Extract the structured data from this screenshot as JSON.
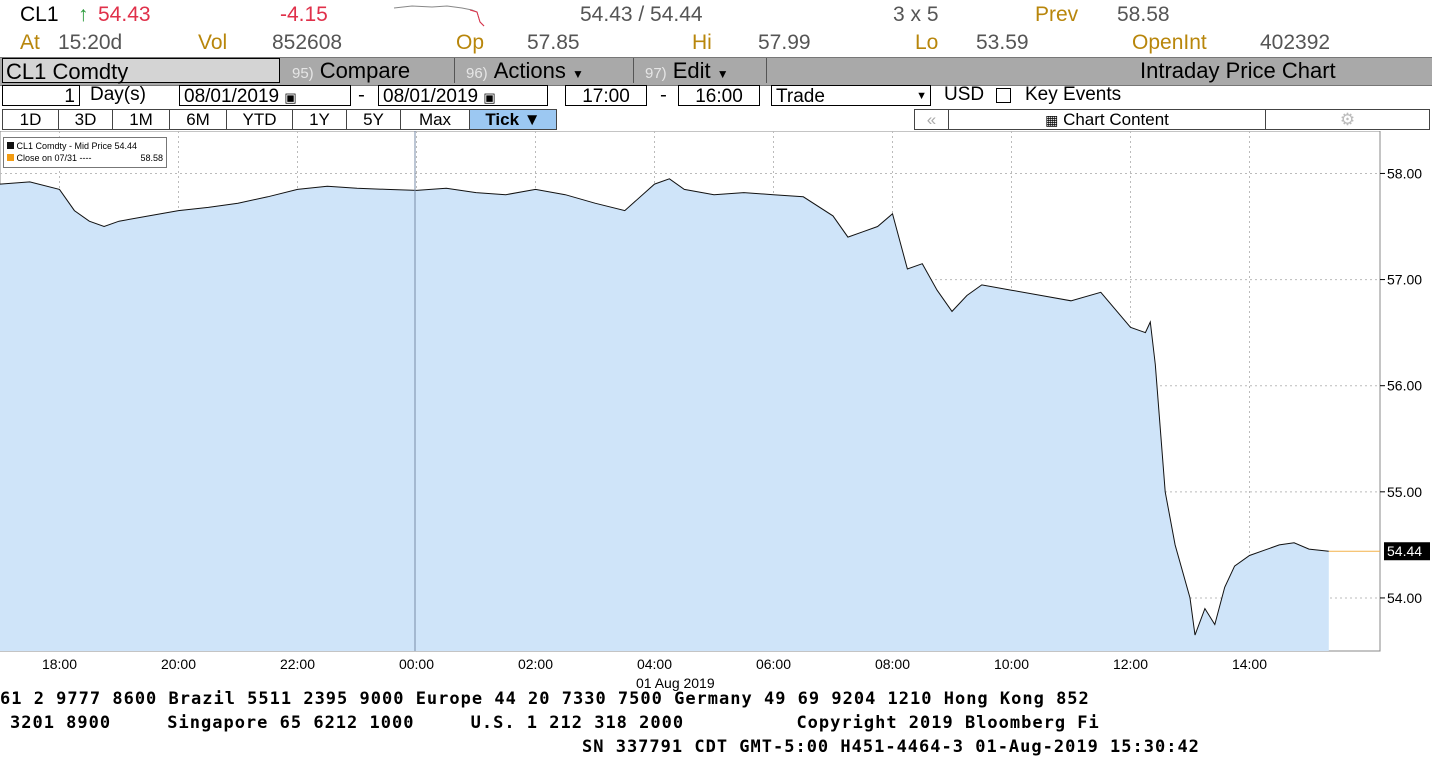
{
  "quote": {
    "ticker": "CL1",
    "arrow": "↑",
    "last": "54.43",
    "change": "-4.15",
    "bid_ask": "54.43 / 54.44",
    "size": "3 x 5",
    "prev_label": "Prev",
    "prev": "58.58",
    "at_label": "At",
    "time": "15:20d",
    "vol_label": "Vol",
    "vol": "852608",
    "op_label": "Op",
    "op": "57.85",
    "hi_label": "Hi",
    "hi": "57.99",
    "lo_label": "Lo",
    "lo": "53.59",
    "oi_label": "OpenInt",
    "oi": "402392"
  },
  "header": {
    "security": "CL1 Comdty",
    "compare_num": "95)",
    "compare": "Compare",
    "actions_num": "96)",
    "actions": "Actions",
    "edit_num": "97)",
    "edit": "Edit",
    "title": "Intraday Price Chart"
  },
  "controls": {
    "days_value": "1",
    "days_unit": "Day(s)",
    "start_date": "08/01/2019",
    "dash": "-",
    "end_date": "08/01/2019",
    "start_time": "17:00",
    "end_time": "16:00",
    "type": "Trade",
    "currency": "USD",
    "key_events": "Key Events"
  },
  "ranges": [
    "1D",
    "3D",
    "1M",
    "6M",
    "YTD",
    "1Y",
    "5Y",
    "Max"
  ],
  "tick_label": "Tick ▼",
  "chart_content": "Chart Content",
  "legend": {
    "series1": "CL1 Comdty - Mid Price 54.44",
    "series2_label": "Close on 07/31 ----",
    "series2_value": "58.58"
  },
  "chart_data": {
    "type": "area",
    "x_tick_labels": [
      "18:00",
      "20:00",
      "22:00",
      "00:00",
      "02:00",
      "04:00",
      "06:00",
      "08:00",
      "10:00",
      "12:00",
      "14:00"
    ],
    "x_date_label": "01 Aug 2019",
    "y_tick_labels": [
      "58.00",
      "57.00",
      "56.00",
      "55.00",
      "54.00"
    ],
    "ylim": [
      53.5,
      58.4
    ],
    "last_price_label": "54.44",
    "x": [
      "17:00",
      "17:30",
      "18:00",
      "18:15",
      "18:30",
      "18:45",
      "19:00",
      "19:30",
      "20:00",
      "20:30",
      "21:00",
      "21:30",
      "22:00",
      "22:30",
      "23:00",
      "23:30",
      "00:00",
      "00:30",
      "01:00",
      "01:30",
      "02:00",
      "02:30",
      "03:00",
      "03:30",
      "04:00",
      "04:15",
      "04:30",
      "05:00",
      "05:30",
      "06:00",
      "06:30",
      "07:00",
      "07:15",
      "07:30",
      "07:45",
      "08:00",
      "08:15",
      "08:30",
      "08:45",
      "09:00",
      "09:15",
      "09:30",
      "10:00",
      "10:30",
      "11:00",
      "11:30",
      "12:00",
      "12:15",
      "12:20",
      "12:25",
      "12:35",
      "12:45",
      "13:00",
      "13:05",
      "13:15",
      "13:25",
      "13:35",
      "13:45",
      "14:00",
      "14:15",
      "14:30",
      "14:45",
      "15:00",
      "15:20"
    ],
    "values": [
      57.9,
      57.92,
      57.85,
      57.65,
      57.55,
      57.5,
      57.55,
      57.6,
      57.65,
      57.68,
      57.72,
      57.78,
      57.85,
      57.88,
      57.86,
      57.85,
      57.84,
      57.86,
      57.82,
      57.8,
      57.85,
      57.8,
      57.72,
      57.65,
      57.9,
      57.95,
      57.85,
      57.8,
      57.82,
      57.8,
      57.78,
      57.6,
      57.4,
      57.45,
      57.5,
      57.62,
      57.1,
      57.15,
      56.9,
      56.7,
      56.85,
      56.95,
      56.9,
      56.85,
      56.8,
      56.88,
      56.55,
      56.5,
      56.6,
      56.2,
      55.0,
      54.5,
      54.0,
      53.65,
      53.9,
      53.75,
      54.1,
      54.3,
      54.4,
      54.45,
      54.5,
      54.52,
      54.46,
      54.44
    ],
    "reference_line": 58.58
  },
  "footer": {
    "line1": "61 2 9777 8600 Brazil 5511 2395 9000 Europe 44 20 7330 7500 Germany 49 69 9204 1210 Hong Kong 852",
    "line2": "3201 8900     Singapore 65 6212 1000     U.S. 1 212 318 2000          Copyright 2019 Bloomberg Fi",
    "line3": "SN 337791 CDT  GMT-5:00 H451-4464-3 01-Aug-2019 15:30:42"
  },
  "colors": {
    "area_fill": "#cfe4f9",
    "line": "#111111",
    "up_arrow": "#2a9a3a",
    "down": "#e0304a",
    "label_orange": "#b8860b",
    "last_price_line": "#f3b24a"
  }
}
